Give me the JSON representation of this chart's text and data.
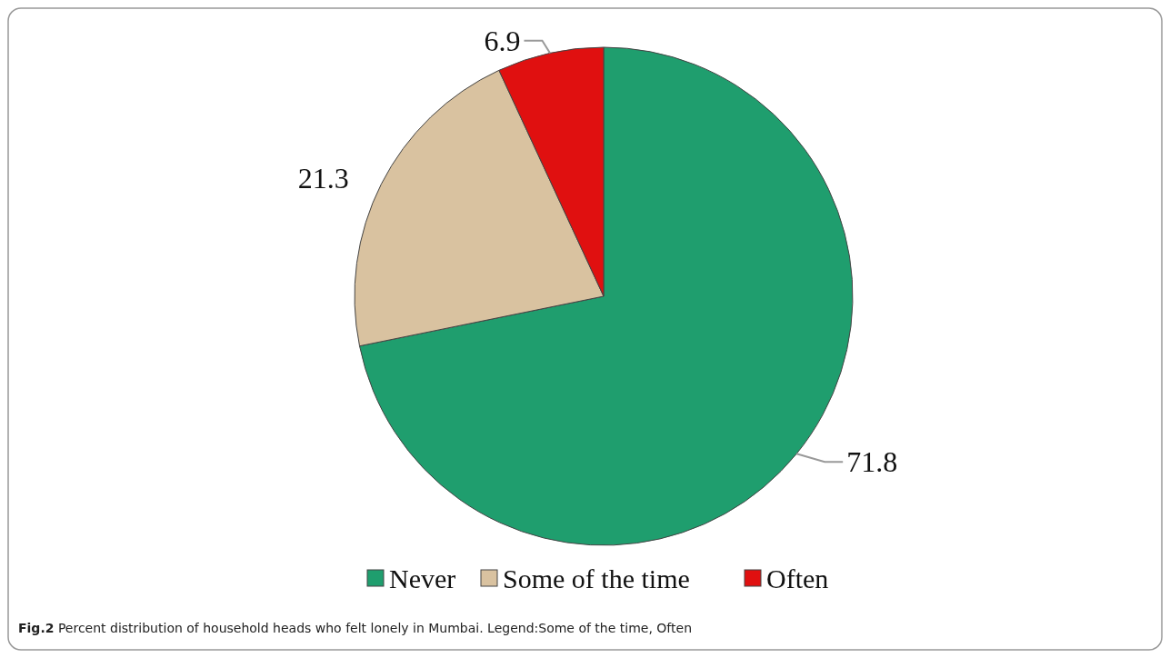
{
  "chart_data": {
    "type": "pie",
    "categories": [
      "Never",
      "Some of the time",
      "Often"
    ],
    "values": [
      71.8,
      21.3,
      6.9
    ],
    "colors": [
      "#1f9e6e",
      "#d9c2a0",
      "#e01010"
    ],
    "data_labels": true,
    "legend": "bottom",
    "annotations": [
      "Fig.2 Percent distribution of household heads who felt lonely in Mumbai. Legend:Some of the time, Often"
    ]
  }
}
